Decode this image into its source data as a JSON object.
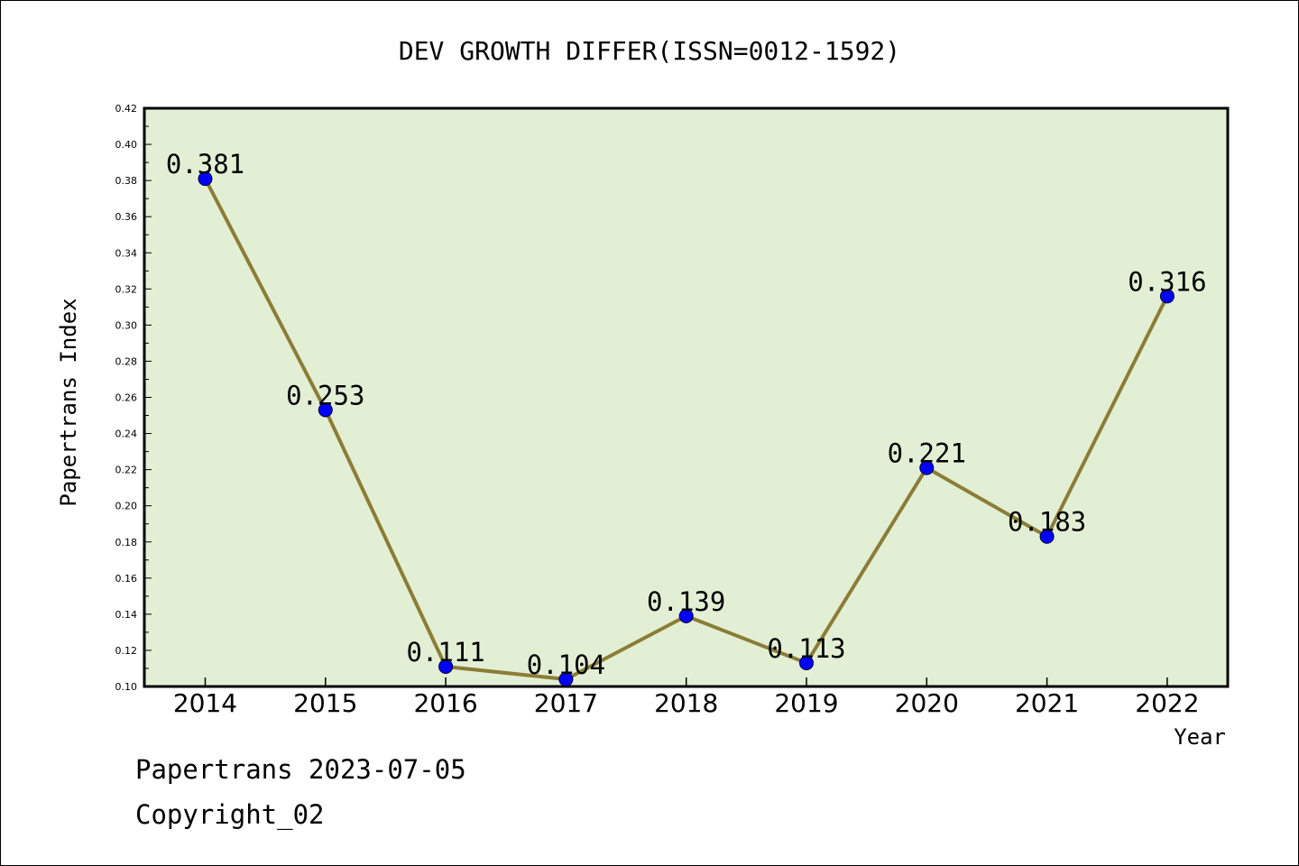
{
  "chart_data": {
    "type": "line",
    "title": "DEV GROWTH DIFFER(ISSN=0012-1592)",
    "xlabel": "Year",
    "ylabel": "Papertrans Index",
    "categories": [
      "2014",
      "2015",
      "2016",
      "2017",
      "2018",
      "2019",
      "2020",
      "2021",
      "2022"
    ],
    "values": [
      0.381,
      0.253,
      0.111,
      0.104,
      0.139,
      0.113,
      0.221,
      0.183,
      0.316
    ],
    "data_labels": [
      "0.381",
      "0.253",
      "0.111",
      "0.104",
      "0.139",
      "0.113",
      "0.221",
      "0.183",
      "0.316"
    ],
    "ylim": [
      0.1,
      0.42
    ],
    "yticks": [
      "0.10",
      "0.12",
      "0.14",
      "0.16",
      "0.18",
      "0.20",
      "0.22",
      "0.24",
      "0.26",
      "0.28",
      "0.30",
      "0.32",
      "0.34",
      "0.36",
      "0.38",
      "0.40",
      "0.42"
    ],
    "grid": false,
    "legend": "none",
    "colors": {
      "plot_background": "#e2efd5",
      "line": "#8b7d36",
      "marker": "#0000ff"
    }
  },
  "footer": {
    "line1": "Papertrans 2023-07-05",
    "line2": "Copyright_02"
  }
}
